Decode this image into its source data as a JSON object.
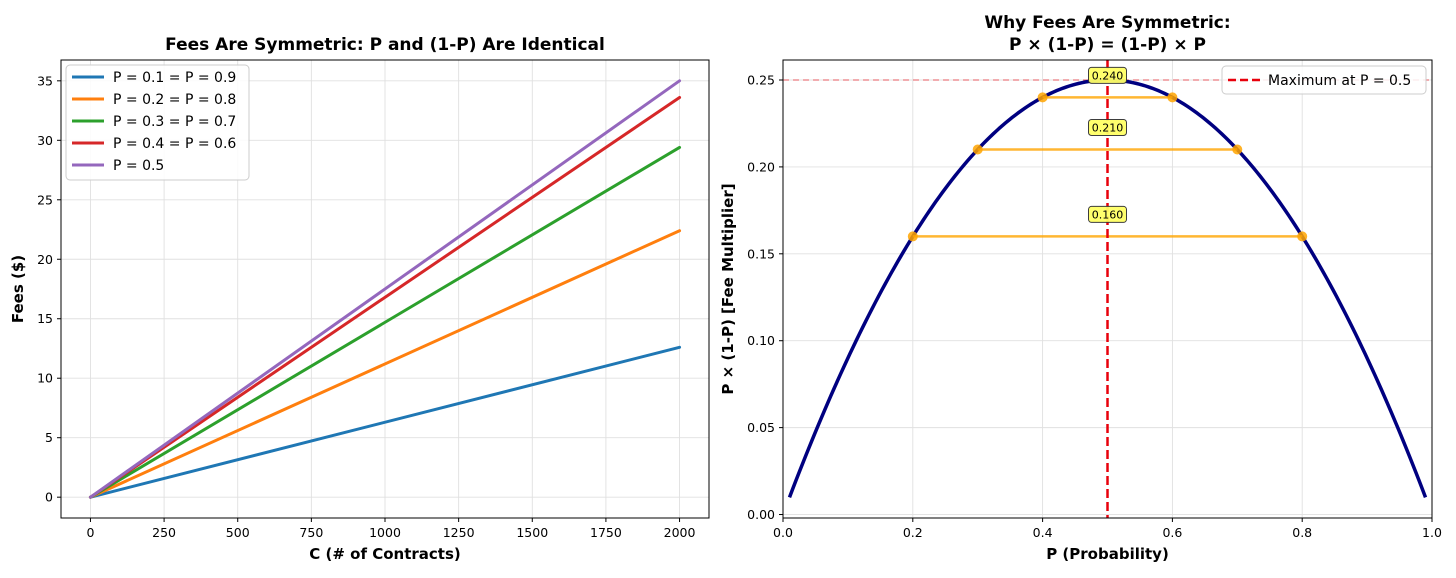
{
  "chart_data": [
    {
      "type": "line",
      "title": "Fees Are Symmetric: P and (1-P) Are Identical",
      "xlabel": "C (# of Contracts)",
      "ylabel": "Fees ($)",
      "xlim": [
        -100,
        2100
      ],
      "ylim": [
        -1.75,
        36.75
      ],
      "xticks": [
        "0",
        "250",
        "500",
        "750",
        "1000",
        "1250",
        "1500",
        "1750",
        "2000"
      ],
      "yticks": [
        "0",
        "5",
        "10",
        "15",
        "20",
        "25",
        "30",
        "35"
      ],
      "grid": true,
      "legend_position": "top-left",
      "x": [
        0,
        2000
      ],
      "series": [
        {
          "name": "P = 0.1 = P = 0.9",
          "color": "#1f77b4",
          "values": [
            0,
            12.6
          ]
        },
        {
          "name": "P = 0.2 = P = 0.8",
          "color": "#ff7f0e",
          "values": [
            0,
            22.4
          ]
        },
        {
          "name": "P = 0.3 = P = 0.7",
          "color": "#2ca02c",
          "values": [
            0,
            29.4
          ]
        },
        {
          "name": "P = 0.4 = P = 0.6",
          "color": "#d62728",
          "values": [
            0,
            33.6
          ]
        },
        {
          "name": "P = 0.5",
          "color": "#9467bd",
          "values": [
            0,
            35.0
          ]
        }
      ]
    },
    {
      "type": "line",
      "title": "Why Fees Are Symmetric:",
      "subtitle": "P × (1-P) = (1-P) × P",
      "xlabel": "P (Probability)",
      "ylabel": "P × (1-P) [Fee Multiplier]",
      "xlim": [
        0.0,
        1.0
      ],
      "ylim": [
        -0.002,
        0.2615
      ],
      "xticks": [
        "0.0",
        "0.2",
        "0.4",
        "0.6",
        "0.8",
        "1.0"
      ],
      "yticks": [
        "0.00",
        "0.05",
        "0.10",
        "0.15",
        "0.20",
        "0.25"
      ],
      "grid": true,
      "legend_position": "top-right",
      "curve": {
        "color": "#000080",
        "p_range": [
          0.01,
          0.99
        ],
        "function": "p*(1-p)"
      },
      "max_line": {
        "name": "Maximum at P = 0.5",
        "x": 0.5,
        "color": "#e8000b"
      },
      "reference_hline": {
        "y": 0.25,
        "color": "#e8000b"
      },
      "pairs": [
        {
          "p1": 0.2,
          "p2": 0.8,
          "value": 0.16,
          "label": "0.160"
        },
        {
          "p1": 0.3,
          "p2": 0.7,
          "value": 0.21,
          "label": "0.210"
        },
        {
          "p1": 0.4,
          "p2": 0.6,
          "value": 0.24,
          "label": "0.240"
        }
      ],
      "pair_color": "#ffa500",
      "label_box_color": "#ffff66"
    }
  ]
}
